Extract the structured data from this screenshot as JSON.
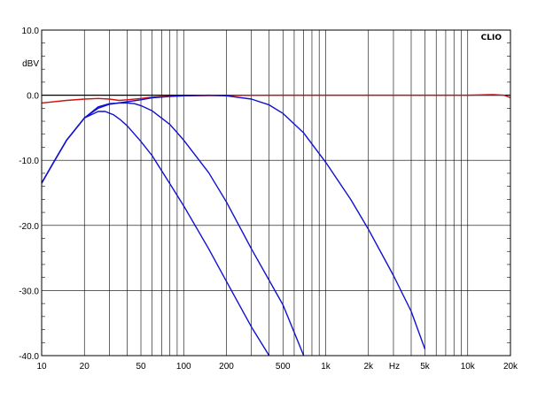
{
  "chart_data": {
    "type": "line",
    "brand": "CLIO",
    "ylabel": "dBV",
    "xlabel": "Hz",
    "x_scale": "log",
    "xlim": [
      10,
      20000
    ],
    "ylim": [
      -40,
      10
    ],
    "grid": true,
    "y_ticks": [
      10,
      0,
      -10,
      -20,
      -30,
      -40
    ],
    "y_tick_labels": [
      "10.0",
      "0.0",
      "-10.0",
      "-20.0",
      "-30.0",
      "-40.0"
    ],
    "x_ticks": [
      10,
      20,
      50,
      100,
      200,
      500,
      1000,
      2000,
      5000,
      10000,
      20000
    ],
    "x_tick_labels": [
      "10",
      "20",
      "50",
      "100",
      "200",
      "500",
      "1k",
      "2k",
      "5k",
      "10k",
      "20k"
    ],
    "colors": {
      "highpass": "#d01010",
      "lowpass": "#1010d0",
      "grid": "#000000",
      "zero_line": "#000000"
    },
    "series": [
      {
        "color": "#d01010",
        "x": [
          10,
          15,
          20,
          25,
          30,
          35,
          40,
          50,
          60,
          80,
          100,
          150,
          200,
          300,
          500,
          1000,
          2000,
          5000,
          10000,
          15000,
          18000,
          20000
        ],
        "y": [
          -1.2,
          -0.8,
          -0.6,
          -0.5,
          -0.6,
          -0.8,
          -0.7,
          -0.5,
          -0.3,
          -0.15,
          -0.1,
          -0.05,
          -0.05,
          -0.02,
          0,
          0,
          0,
          0,
          0,
          0.1,
          0,
          -0.4
        ]
      },
      {
        "color": "#1010d0",
        "x": [
          10,
          12,
          15,
          20,
          25,
          28,
          32,
          36,
          40,
          50,
          60,
          80,
          100,
          150,
          200,
          300,
          400
        ],
        "y": [
          -13.5,
          -10.5,
          -6.9,
          -3.5,
          -2.5,
          -2.5,
          -3.0,
          -3.8,
          -4.7,
          -7.1,
          -9.3,
          -13.6,
          -17.0,
          -23.6,
          -28.6,
          -35.6,
          -40.0
        ]
      },
      {
        "color": "#1010d0",
        "x": [
          10,
          12,
          15,
          20,
          25,
          30,
          35,
          40,
          45,
          50,
          60,
          80,
          100,
          150,
          200,
          300,
          500,
          700
        ],
        "y": [
          -13.5,
          -10.5,
          -6.9,
          -3.5,
          -1.8,
          -1.3,
          -1.2,
          -1.2,
          -1.3,
          -1.6,
          -2.4,
          -4.5,
          -6.9,
          -11.9,
          -16.4,
          -23.6,
          -32.2,
          -40.0
        ]
      },
      {
        "color": "#1010d0",
        "x": [
          10,
          12,
          15,
          20,
          25,
          30,
          40,
          50,
          60,
          80,
          100,
          150,
          200,
          300,
          400,
          500,
          700,
          1000,
          1500,
          2000,
          3000,
          4000,
          5000
        ],
        "y": [
          -13.5,
          -10.5,
          -6.9,
          -3.5,
          -2.0,
          -1.4,
          -1.0,
          -0.7,
          -0.4,
          -0.2,
          -0.1,
          0,
          -0.1,
          -0.6,
          -1.5,
          -2.8,
          -5.8,
          -10.3,
          -16.0,
          -20.6,
          -27.7,
          -33.2,
          -39.0
        ]
      }
    ]
  }
}
